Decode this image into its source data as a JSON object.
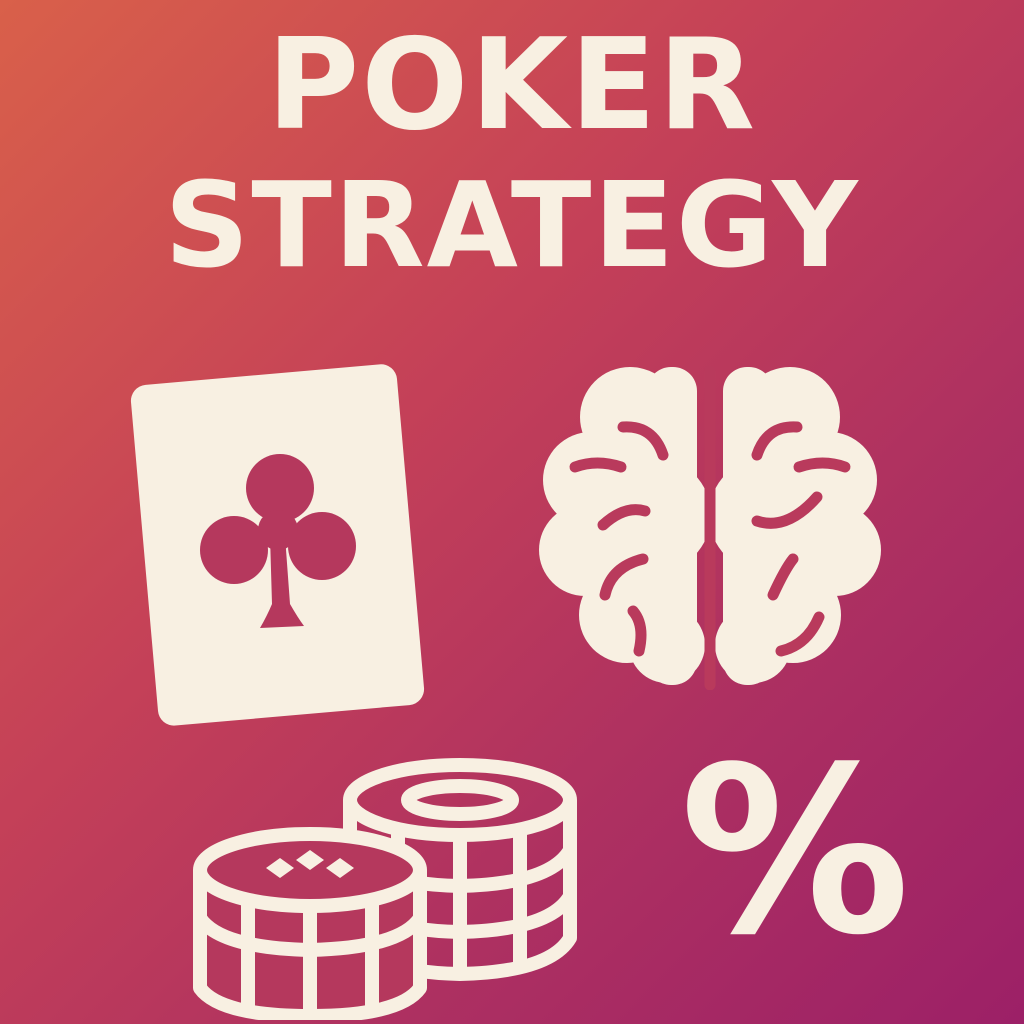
{
  "colors": {
    "foreground": "#f8f0e2",
    "background_top_left": "#d9604a",
    "background_bottom_right": "#9c2067"
  },
  "title": {
    "line1": "POKER",
    "line2": "STRATEGY"
  },
  "icons": {
    "card": "club-card-icon",
    "brain": "brain-icon",
    "chips": "poker-chips-icon"
  },
  "percent_symbol": "%"
}
